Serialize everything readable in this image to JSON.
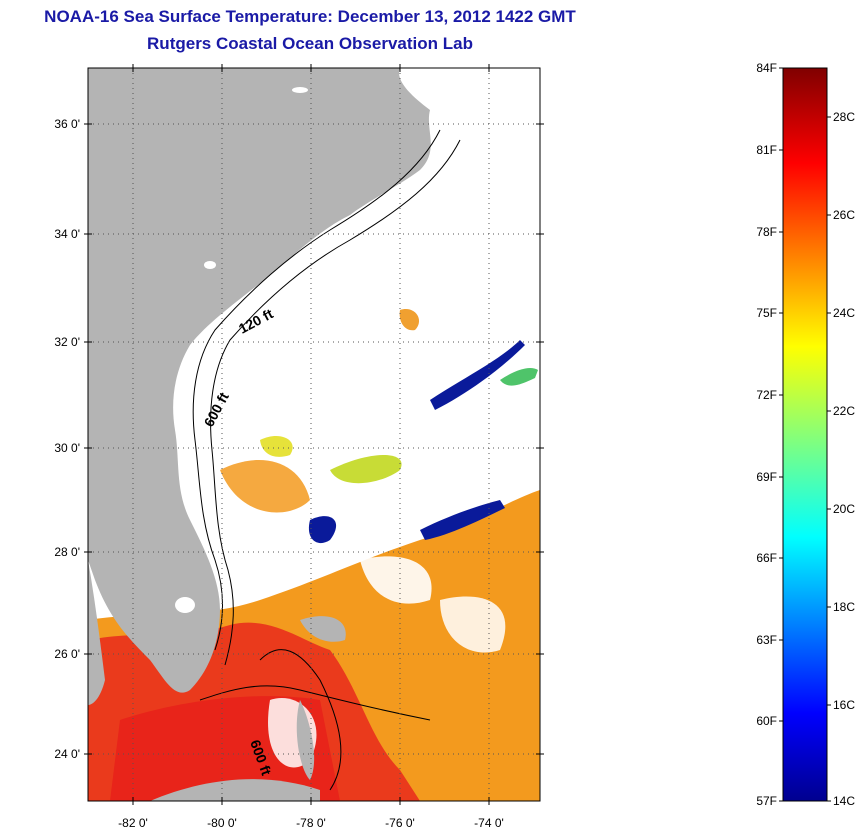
{
  "title": {
    "line1": "NOAA-16 Sea Surface Temperature:  December 13, 2012 1422 GMT",
    "line2": "Rutgers Coastal Ocean Observation Lab"
  },
  "map": {
    "lat_labels": [
      "36 0'",
      "34 0'",
      "32 0'",
      "30 0'",
      "28 0'",
      "26 0'",
      "24 0'"
    ],
    "lon_labels": [
      "-82 0'",
      "-80 0'",
      "-78 0'",
      "-76 0'",
      "-74 0'"
    ],
    "contour_labels": {
      "c120": "120 ft",
      "c600a": "600 ft",
      "c600b": "600 ft"
    },
    "colors": {
      "land": "#b4b4b4",
      "ocean_missing": "#ffffff",
      "grid": "#555555"
    }
  },
  "colorbar": {
    "fahrenheit_labels": [
      "84F",
      "81F",
      "78F",
      "75F",
      "72F",
      "69F",
      "66F",
      "63F",
      "60F",
      "57F"
    ],
    "celsius_labels": [
      "28C",
      "26C",
      "24C",
      "22C",
      "20C",
      "18C",
      "16C",
      "14C"
    ],
    "range_c": [
      14,
      29
    ],
    "colormap": "jet"
  }
}
